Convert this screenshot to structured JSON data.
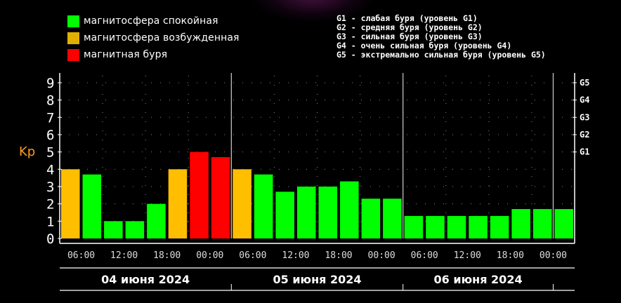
{
  "legend": {
    "items": [
      {
        "label": "магнитосфера спокойная",
        "color": "#00ff00"
      },
      {
        "label": "магнитосфера возбужденная",
        "color": "#e0b000"
      },
      {
        "label": "магнитная буря",
        "color": "#ff0000"
      }
    ],
    "g_levels": [
      "G1 - слабая буря (уровень G1)",
      "G2 - средняя буря (уровень G2)",
      "G3 - сильная буря (уровень G3)",
      "G4 - очень сильная буря (уровень G4)",
      "G5 - экстремально сильная буря (уровень G5)"
    ]
  },
  "chart_data": {
    "type": "bar",
    "ylabel": "Kp",
    "ylim": [
      0,
      9
    ],
    "yticks": [
      "0",
      "1",
      "2",
      "3",
      "4",
      "5",
      "6",
      "7",
      "8",
      "9"
    ],
    "right_ticks": [
      {
        "label": "G1",
        "value": 5
      },
      {
        "label": "G2",
        "value": 6
      },
      {
        "label": "G3",
        "value": 7
      },
      {
        "label": "G4",
        "value": 8
      },
      {
        "label": "G5",
        "value": 9
      }
    ],
    "xtick_labels": [
      "06:00",
      "12:00",
      "18:00",
      "00:00",
      "06:00",
      "12:00",
      "18:00",
      "00:00",
      "06:00",
      "12:00",
      "18:00",
      "00:00"
    ],
    "dates": [
      "04 июня 2024",
      "05 июня 2024",
      "06 июня 2024"
    ],
    "grid": true,
    "colors": {
      "quiet": "#00ff00",
      "active": "#ffbe00",
      "storm": "#ff0000"
    },
    "values": [
      4.0,
      3.7,
      1.0,
      1.0,
      2.0,
      4.0,
      5.0,
      4.7,
      4.0,
      3.7,
      2.7,
      3.0,
      3.0,
      3.3,
      2.3,
      2.3,
      1.3,
      1.3,
      1.3,
      1.3,
      1.3,
      1.7,
      1.7,
      1.7
    ],
    "categories": [
      "active",
      "quiet",
      "quiet",
      "quiet",
      "quiet",
      "active",
      "storm",
      "storm",
      "active",
      "quiet",
      "quiet",
      "quiet",
      "quiet",
      "quiet",
      "quiet",
      "quiet",
      "quiet",
      "quiet",
      "quiet",
      "quiet",
      "quiet",
      "quiet",
      "quiet",
      "quiet"
    ]
  }
}
